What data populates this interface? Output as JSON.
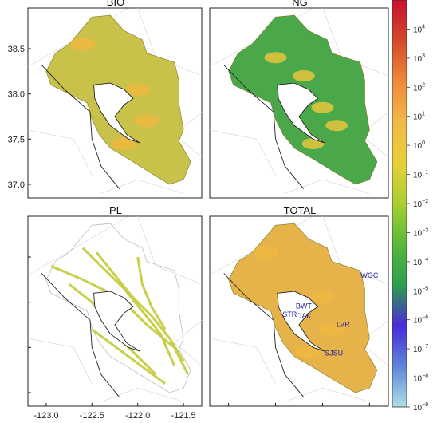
{
  "chart_data": [
    {
      "type": "heatmap",
      "title": "BIO",
      "region": "San Francisco Bay Area",
      "ylabels": [
        "38.5",
        "38.0",
        "37.5",
        "37.0"
      ],
      "y_ticks": [
        38.5,
        38.0,
        37.5,
        37.0
      ],
      "xlim": [
        -123.2,
        -121.3
      ],
      "ylim": [
        36.85,
        38.95
      ],
      "dominant_color": "#c8c24a"
    },
    {
      "type": "heatmap",
      "title": "NG",
      "dominant_color": "#4aa84a"
    },
    {
      "type": "heatmap",
      "title": "PL",
      "dominant_color": "#c9cf4a",
      "xlabels": [
        "-123.0",
        "-122.5",
        "-122.0",
        "-121.5"
      ],
      "x_ticks": [
        -123.0,
        -122.5,
        -122.0,
        -121.5
      ]
    },
    {
      "type": "heatmap",
      "title": "TOTAL",
      "dominant_color": "#e6b34a",
      "sites": [
        {
          "label": "WGC",
          "lon": -121.5,
          "lat": 38.27
        },
        {
          "label": "BWT",
          "lon": -122.2,
          "lat": 37.93
        },
        {
          "label": "STR",
          "lon": -122.35,
          "lat": 37.84
        },
        {
          "label": "OAK",
          "lon": -122.2,
          "lat": 37.82
        },
        {
          "label": "LVR",
          "lon": -121.78,
          "lat": 37.73
        },
        {
          "label": "SJSU",
          "lon": -121.88,
          "lat": 37.41
        }
      ]
    }
  ],
  "colorbar": {
    "scale": "log",
    "range": [
      1e-09,
      100000.0
    ],
    "colors": [
      "#b0dde6",
      "#5f86d9",
      "#4a2ad9",
      "#2c9e4c",
      "#58b93a",
      "#a9cf33",
      "#e8cf3a",
      "#f3b84a",
      "#ef8a3a",
      "#d34a2a",
      "#c8102e"
    ],
    "labels": [
      {
        "base": "10",
        "exp": "4",
        "value": 4
      },
      {
        "base": "10",
        "exp": "3",
        "value": 3
      },
      {
        "base": "10",
        "exp": "2",
        "value": 2
      },
      {
        "base": "10",
        "exp": "1",
        "value": 1
      },
      {
        "base": "10",
        "exp": "0",
        "value": 0
      },
      {
        "base": "10",
        "exp": "−1",
        "value": -1
      },
      {
        "base": "10",
        "exp": "−2",
        "value": -2
      },
      {
        "base": "10",
        "exp": "−3",
        "value": -3
      },
      {
        "base": "10",
        "exp": "−4",
        "value": -4
      },
      {
        "base": "10",
        "exp": "−5",
        "value": -5
      },
      {
        "base": "10",
        "exp": "−6",
        "value": -6
      },
      {
        "base": "10",
        "exp": "−7",
        "value": -7
      },
      {
        "base": "10",
        "exp": "−8",
        "value": -8
      },
      {
        "base": "10",
        "exp": "−9",
        "value": -9
      }
    ]
  }
}
